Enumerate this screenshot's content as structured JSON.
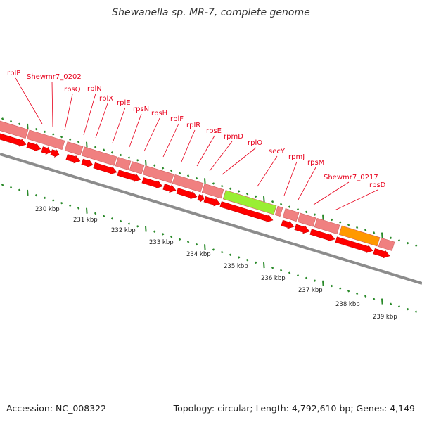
{
  "title": "Shewanella sp. MR-7, complete genome",
  "footer": {
    "accession": "Accession: NC_008322",
    "topology": "Topology: circular; Length: 4,792,610 bp; Genes: 4,149"
  },
  "colors": {
    "gene_arrow": "#ff0000",
    "gene_box": "#f08080",
    "highlight_secY": "#99ee33",
    "highlight_rpsD": "#ff9900",
    "label": "#e8001c",
    "tick": "#2a8a2a",
    "backbone": "#888888"
  },
  "gene_labels": [
    "rplP",
    "Shewmr7_0202",
    "rpsQ",
    "rplN",
    "rplX",
    "rplE",
    "rpsN",
    "rpsH",
    "rplF",
    "rplR",
    "rpsE",
    "rpmD",
    "rplO",
    "secY",
    "rpmJ",
    "rpsM",
    "Shewmr7_0217",
    "rpsD"
  ],
  "kbp_labels": [
    "230 kbp",
    "231 kbp",
    "232 kbp",
    "233 kbp",
    "234 kbp",
    "235 kbp",
    "236 kbp",
    "237 kbp",
    "238 kbp",
    "239 kbp"
  ]
}
